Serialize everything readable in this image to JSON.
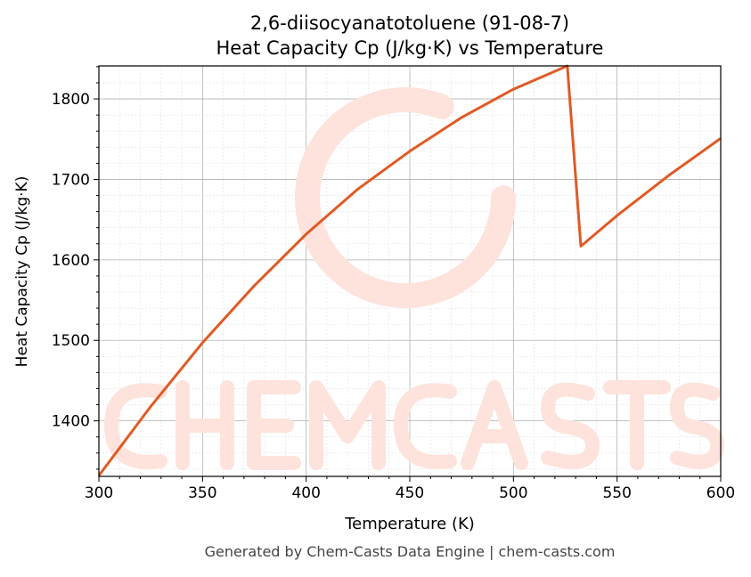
{
  "chart_data": {
    "type": "line",
    "title": "2,6-diisocyanatotoluene (91-08-7)",
    "subtitle": "Heat Capacity Cp (J/kg·K) vs Temperature",
    "xlabel": "Temperature (K)",
    "ylabel": "Heat Capacity Cp (J/kg·K)",
    "xlim": [
      300,
      600
    ],
    "ylim": [
      1331,
      1841
    ],
    "xticks": [
      300,
      350,
      400,
      450,
      500,
      550,
      600
    ],
    "yticks": [
      1400,
      1500,
      1600,
      1700,
      1800
    ],
    "grid": true,
    "series": [
      {
        "name": "Cp",
        "color": "#e05a25",
        "x": [
          300,
          325,
          350,
          375,
          400,
          425,
          450,
          475,
          500,
          526,
          532.5,
          550,
          575,
          600
        ],
        "y": [
          1332,
          1418,
          1497,
          1568,
          1632,
          1688,
          1735,
          1777,
          1812,
          1841,
          1617,
          1655,
          1705,
          1751
        ]
      }
    ],
    "watermark": "CHEMCASTS",
    "footer": "Generated by Chem-Casts Data Engine | chem-casts.com"
  }
}
